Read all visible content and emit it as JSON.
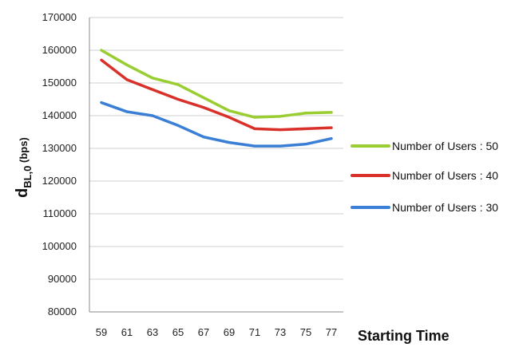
{
  "chart_data": {
    "type": "line",
    "xlabel": "Starting Time",
    "ylabel": {
      "main": "d",
      "sub": "BL,0",
      "unit": " (bps)"
    },
    "x": [
      59,
      61,
      63,
      65,
      67,
      69,
      71,
      73,
      75,
      77
    ],
    "ylim": [
      80000,
      170000
    ],
    "yticks": [
      80000,
      90000,
      100000,
      110000,
      120000,
      130000,
      140000,
      150000,
      160000,
      170000
    ],
    "grid": "horizontal",
    "legend_position": "right",
    "series": [
      {
        "name": "Number of Users : 50",
        "color": "#9acd32",
        "values": [
          160000,
          155500,
          151500,
          149500,
          145500,
          141500,
          139500,
          139800,
          140800,
          141000
        ]
      },
      {
        "name": "Number of Users : 40",
        "color": "#d9302a",
        "values": [
          157000,
          151000,
          148000,
          145000,
          142500,
          139500,
          136000,
          135700,
          136000,
          136300
        ]
      },
      {
        "name": "Number of Users : 30",
        "color": "#3a7fd5",
        "values": [
          144000,
          141200,
          140000,
          137000,
          133500,
          131800,
          130700,
          130700,
          131300,
          133000
        ]
      }
    ]
  }
}
